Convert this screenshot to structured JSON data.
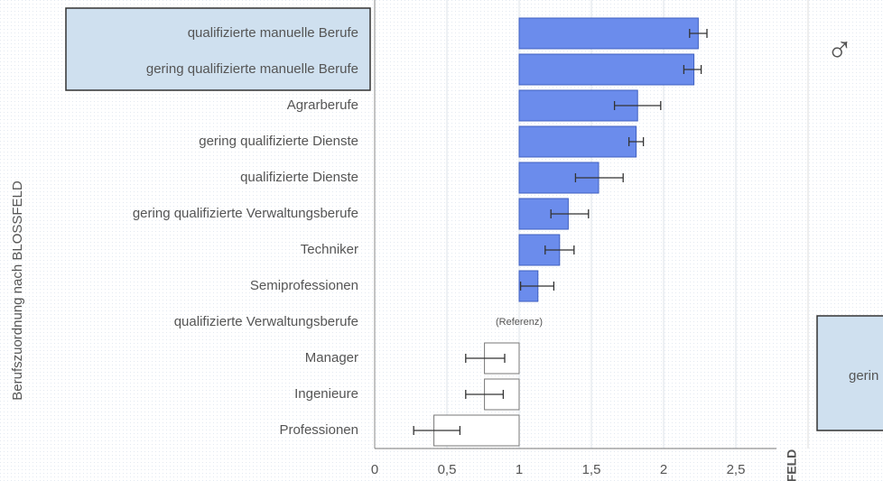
{
  "chart_data": {
    "type": "bar",
    "orientation": "horizontal",
    "y_label": "Berufszuordnung nach BLOSSFELD",
    "categories": [
      "qualifizierte manuelle Berufe",
      "gering qualifizierte manuelle Berufe",
      "Agrarberufe",
      "gering qualifizierte Dienste",
      "qualifizierte Dienste",
      "gering qualifizierte Verwaltungsberufe",
      "Techniker",
      "Semiprofessionen",
      "qualifizierte Verwaltungsberufe",
      "Manager",
      "Ingenieure",
      "Professionen"
    ],
    "values": [
      2.24,
      2.21,
      1.82,
      1.81,
      1.55,
      1.34,
      1.28,
      1.13,
      null,
      0.76,
      0.76,
      0.41
    ],
    "err_low": [
      2.18,
      2.14,
      1.66,
      1.76,
      1.39,
      1.22,
      1.18,
      1.01,
      null,
      0.63,
      0.63,
      0.27
    ],
    "err_high": [
      2.3,
      2.26,
      1.98,
      1.86,
      1.72,
      1.48,
      1.38,
      1.24,
      null,
      0.9,
      0.89,
      0.59
    ],
    "reference": 1,
    "reference_label": "(Referenz)",
    "color_above": "#6b8cec",
    "color_below": "#ffffff",
    "xlim": [
      0,
      3
    ],
    "xticks": [
      0,
      {
        "value": 0.5,
        "label": "0,5"
      },
      1,
      {
        "value": 1.5,
        "label": "1,5"
      },
      2,
      {
        "value": 2.5,
        "label": "2,5"
      }
    ],
    "grid": true,
    "highlighted": [
      0,
      1
    ],
    "symbol": "♂",
    "fragments": [
      "FELD",
      "gerin"
    ]
  }
}
